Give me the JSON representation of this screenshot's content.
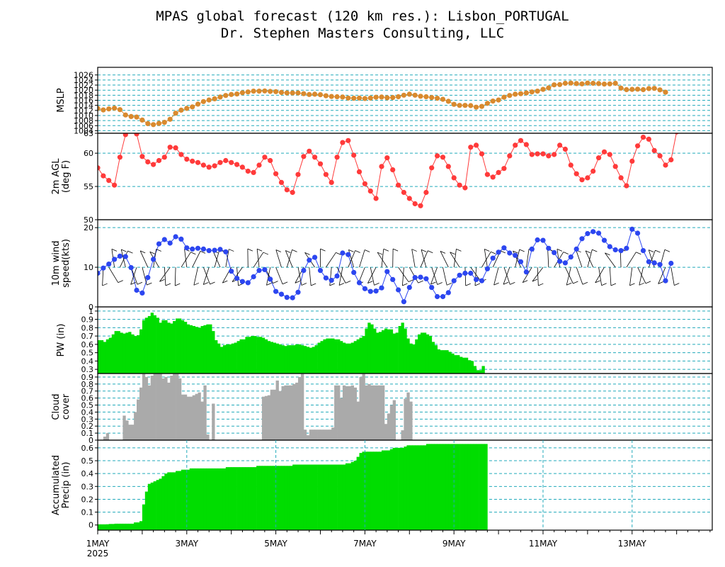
{
  "header": {
    "title": "MPAS global forecast (120 km res.): Lisbon_PORTUGAL",
    "subtitle": "Dr. Stephen Masters Consulting, LLC"
  },
  "colors": {
    "mslp": "#d98a2e",
    "temp": "#ff3a3a",
    "wind": "#2c46f0",
    "pw_fill": "#00dd00",
    "cloud_fill": "#aaaaaa",
    "precip_fill": "#00dd00",
    "grid": "#22aabb"
  },
  "chart_data": [
    {
      "type": "line",
      "name": "mslp",
      "ylabel": "MSLP",
      "ylim": [
        1003,
        1029
      ],
      "yticks": [
        1004,
        1006,
        1008,
        1010,
        1012,
        1014,
        1016,
        1018,
        1020,
        1022,
        1024,
        1026
      ],
      "ytick_labels": [
        "1004",
        "1006",
        "1008",
        "1010",
        "1012",
        "1014",
        "1016",
        "1018",
        "1020",
        "1022",
        "1024",
        "1026"
      ],
      "gridlines": [
        1004,
        1006,
        1008,
        1010,
        1012,
        1014,
        1016,
        1018,
        1020,
        1022,
        1024,
        1026
      ],
      "x_start_day": 0,
      "x_step_days": 0.125,
      "values": [
        1012.8,
        1012.2,
        1012.6,
        1012.9,
        1012.3,
        1010.2,
        1009.6,
        1009.4,
        1008.2,
        1006.8,
        1006.4,
        1006.9,
        1007.3,
        1008.5,
        1010.9,
        1012.1,
        1012.8,
        1013.4,
        1014.5,
        1015.5,
        1016.1,
        1016.6,
        1017.3,
        1017.9,
        1018.3,
        1018.5,
        1019.0,
        1019.3,
        1019.6,
        1019.6,
        1019.7,
        1019.5,
        1019.4,
        1019.1,
        1018.9,
        1018.9,
        1018.9,
        1018.6,
        1018.3,
        1018.4,
        1018.2,
        1017.8,
        1017.5,
        1017.4,
        1017.3,
        1016.9,
        1016.8,
        1016.9,
        1016.7,
        1016.9,
        1017.2,
        1017.3,
        1017.0,
        1017.1,
        1017.4,
        1018.0,
        1018.4,
        1018.0,
        1017.6,
        1017.4,
        1017.1,
        1016.8,
        1016.4,
        1015.6,
        1014.4,
        1014.0,
        1014.0,
        1013.9,
        1013.3,
        1013.6,
        1014.8,
        1015.7,
        1016.1,
        1017.2,
        1017.9,
        1018.4,
        1018.6,
        1018.9,
        1019.3,
        1019.6,
        1020.3,
        1020.9,
        1022.1,
        1022.2,
        1022.7,
        1022.8,
        1022.6,
        1022.5,
        1022.8,
        1022.7,
        1022.6,
        1022.4,
        1022.5,
        1022.7,
        1020.8,
        1020.2,
        1020.3,
        1020.4,
        1020.2,
        1020.6,
        1020.7,
        1020.1,
        1019.2
      ]
    },
    {
      "type": "line",
      "name": "temp",
      "ylabel": "2m AGL (deg F)",
      "ylim": [
        50,
        63
      ],
      "yticks": [
        50,
        55,
        60,
        63
      ],
      "ytick_labels": [
        "50",
        "55",
        "60",
        "63"
      ],
      "gridlines": [
        55,
        60
      ],
      "x_start_day": 0,
      "x_step_days": 0.125,
      "values": [
        57.8,
        56.6,
        55.9,
        55.2,
        59.4,
        62.8,
        63.4,
        62.9,
        59.5,
        58.7,
        58.3,
        58.9,
        59.4,
        60.9,
        60.8,
        59.8,
        59.1,
        58.8,
        58.6,
        58.2,
        57.9,
        58.1,
        58.6,
        58.9,
        58.6,
        58.3,
        57.9,
        57.3,
        57.1,
        58.2,
        59.4,
        58.9,
        56.9,
        55.6,
        54.5,
        54.1,
        56.8,
        59.5,
        60.3,
        59.4,
        58.4,
        56.8,
        55.6,
        59.4,
        61.6,
        61.9,
        59.7,
        57.2,
        55.4,
        54.3,
        53.2,
        58.0,
        59.3,
        57.5,
        55.2,
        54.1,
        53.2,
        52.4,
        52.1,
        54.1,
        57.8,
        59.6,
        59.4,
        58.0,
        56.3,
        55.2,
        54.8,
        60.9,
        61.2,
        59.9,
        56.8,
        56.4,
        57.1,
        57.7,
        59.6,
        61.2,
        61.9,
        61.3,
        59.8,
        59.9,
        59.9,
        59.6,
        59.8,
        61.2,
        60.6,
        58.2,
        56.9,
        56.0,
        56.3,
        57.3,
        59.3,
        60.2,
        59.8,
        58.0,
        56.3,
        55.1,
        58.8,
        61.1,
        62.4,
        62.1,
        60.4,
        59.6,
        58.2,
        59.0,
        63.2
      ]
    },
    {
      "type": "line",
      "name": "wind",
      "ylabel": "10m wind speed(kts)",
      "ylim": [
        0,
        22
      ],
      "yticks": [
        0,
        10,
        20
      ],
      "ytick_labels": [
        "0",
        "10",
        "20"
      ],
      "gridlines": [
        10,
        20
      ],
      "x_start_day": 0,
      "x_step_days": 0.125,
      "values": [
        8.5,
        9.8,
        10.8,
        12.0,
        12.8,
        12.7,
        9.9,
        4.2,
        3.5,
        7.4,
        12.0,
        15.9,
        17.0,
        16.1,
        17.7,
        17.1,
        14.9,
        14.6,
        14.8,
        14.6,
        14.2,
        14.3,
        14.5,
        13.9,
        9.0,
        7.2,
        6.4,
        6.1,
        7.6,
        9.2,
        9.4,
        7.0,
        3.9,
        3.2,
        2.4,
        2.3,
        3.7,
        9.2,
        11.8,
        12.5,
        9.2,
        7.3,
        6.7,
        7.8,
        13.6,
        13.2,
        8.7,
        6.1,
        4.6,
        3.9,
        4.0,
        4.8,
        8.9,
        6.9,
        4.3,
        1.3,
        4.9,
        7.4,
        7.5,
        7.1,
        4.9,
        2.6,
        2.6,
        3.6,
        6.6,
        8.0,
        8.5,
        8.5,
        6.9,
        6.6,
        9.6,
        12.3,
        13.8,
        14.9,
        13.6,
        13.0,
        11.4,
        8.8,
        14.6,
        16.9,
        16.8,
        14.8,
        13.7,
        11.5,
        11.1,
        12.6,
        14.6,
        17.2,
        18.5,
        19.0,
        18.6,
        16.8,
        15.2,
        14.4,
        14.2,
        14.8,
        19.6,
        18.6,
        14.2,
        11.4,
        11.1,
        10.7,
        6.6,
        11.0
      ]
    },
    {
      "type": "area",
      "name": "pw",
      "ylabel": "PW (in)",
      "ylim": [
        0.25,
        1.05
      ],
      "yticks": [
        0.3,
        0.4,
        0.5,
        0.6,
        0.7,
        0.8,
        0.9,
        1.0
      ],
      "ytick_labels": [
        "0.3",
        "0.4",
        "0.5",
        "0.6",
        "0.7",
        "0.8",
        "0.9",
        "1"
      ],
      "gridlines": [
        0.3,
        0.4,
        0.5,
        0.6,
        0.7,
        0.8,
        0.9,
        1.0
      ],
      "x_start_day": 0,
      "x_step_days": 0.0625,
      "values": [
        0.65,
        0.65,
        0.63,
        0.66,
        0.68,
        0.72,
        0.76,
        0.76,
        0.74,
        0.73,
        0.74,
        0.75,
        0.72,
        0.7,
        0.71,
        0.78,
        0.89,
        0.92,
        0.94,
        0.98,
        0.95,
        0.92,
        0.86,
        0.89,
        0.89,
        0.86,
        0.85,
        0.88,
        0.91,
        0.91,
        0.89,
        0.87,
        0.84,
        0.83,
        0.82,
        0.81,
        0.8,
        0.82,
        0.83,
        0.84,
        0.84,
        0.76,
        0.65,
        0.61,
        0.57,
        0.59,
        0.6,
        0.6,
        0.61,
        0.62,
        0.64,
        0.66,
        0.66,
        0.69,
        0.69,
        0.7,
        0.7,
        0.69,
        0.69,
        0.68,
        0.66,
        0.64,
        0.63,
        0.62,
        0.61,
        0.6,
        0.59,
        0.58,
        0.59,
        0.59,
        0.59,
        0.6,
        0.6,
        0.59,
        0.58,
        0.57,
        0.56,
        0.57,
        0.59,
        0.62,
        0.64,
        0.66,
        0.67,
        0.67,
        0.67,
        0.66,
        0.66,
        0.64,
        0.62,
        0.61,
        0.61,
        0.62,
        0.64,
        0.66,
        0.68,
        0.7,
        0.79,
        0.86,
        0.84,
        0.79,
        0.74,
        0.75,
        0.77,
        0.79,
        0.78,
        0.78,
        0.73,
        0.74,
        0.82,
        0.86,
        0.79,
        0.67,
        0.61,
        0.6,
        0.66,
        0.72,
        0.74,
        0.74,
        0.72,
        0.7,
        0.63,
        0.59,
        0.54,
        0.53,
        0.53,
        0.53,
        0.51,
        0.49,
        0.47,
        0.47,
        0.45,
        0.44,
        0.44,
        0.41,
        0.4,
        0.34,
        0.29,
        0.29,
        0.34
      ]
    },
    {
      "type": "bar",
      "name": "cloud",
      "ylabel": "Cloud cover",
      "ylim": [
        0,
        0.95
      ],
      "yticks": [
        0,
        0.1,
        0.2,
        0.3,
        0.4,
        0.5,
        0.6,
        0.7,
        0.8,
        0.9
      ],
      "ytick_labels": [
        "0",
        "0.1",
        "0.2",
        "0.3",
        "0.4",
        "0.5",
        "0.6",
        "0.7",
        "0.8",
        "0.9"
      ],
      "gridlines": [
        0.1,
        0.2,
        0.3,
        0.4,
        0.5,
        0.6,
        0.7,
        0.8,
        0.9
      ],
      "x_start_day": 0,
      "x_step_days": 0.0625,
      "values": [
        0,
        0,
        0.05,
        0.1,
        0,
        0,
        0,
        0,
        0,
        0.35,
        0.28,
        0.22,
        0.22,
        0.4,
        0.58,
        0.75,
        0.97,
        0.9,
        0.78,
        0.92,
        0.98,
        0.98,
        0.98,
        0.88,
        0.9,
        0.82,
        0.92,
        0.98,
        0.98,
        0.88,
        0.65,
        0.65,
        0.62,
        0.62,
        0.64,
        0.66,
        0.68,
        0.55,
        0.78,
        0.08,
        0,
        0.52,
        0,
        0,
        0,
        0,
        0,
        0,
        0,
        0,
        0,
        0,
        0,
        0,
        0,
        0,
        0,
        0,
        0,
        0.62,
        0.63,
        0.64,
        0.72,
        0.72,
        0.85,
        0.7,
        0.77,
        0.78,
        0.78,
        0.78,
        0.8,
        0.82,
        0.9,
        0.98,
        0.15,
        0.07,
        0.15,
        0.15,
        0.15,
        0.15,
        0.15,
        0.15,
        0.15,
        0.15,
        0.18,
        0.78,
        0.78,
        0.6,
        0.78,
        0.77,
        0.77,
        0.78,
        0.75,
        0.55,
        0.9,
        0.99,
        0.78,
        0.8,
        0.78,
        0.78,
        0.78,
        0.78,
        0.78,
        0.23,
        0.38,
        0.5,
        0.57,
        0,
        0,
        0.14,
        0.59,
        0.68,
        0.55,
        0,
        0,
        0,
        0,
        0,
        0,
        0,
        0,
        0,
        0,
        0,
        0,
        0,
        0,
        0,
        0,
        0,
        0,
        0,
        0,
        0,
        0,
        0,
        0,
        0,
        0
      ]
    },
    {
      "type": "area",
      "name": "precip",
      "ylabel": "Accumulated Precip (in)",
      "ylim": [
        -0.04,
        0.66
      ],
      "yticks": [
        0,
        0.1,
        0.2,
        0.3,
        0.4,
        0.5,
        0.6
      ],
      "ytick_labels": [
        "0",
        "0.1",
        "0.2",
        "0.3",
        "0.4",
        "0.5",
        "0.6"
      ],
      "gridlines": [
        0.1,
        0.2,
        0.3,
        0.4,
        0.5,
        0.6
      ],
      "x_start_day": 0,
      "x_step_days": 0.0625,
      "values": [
        0.005,
        0.005,
        0.005,
        0.006,
        0.008,
        0.008,
        0.01,
        0.01,
        0.01,
        0.01,
        0.01,
        0.01,
        0.01,
        0.02,
        0.02,
        0.03,
        0.16,
        0.26,
        0.32,
        0.33,
        0.34,
        0.35,
        0.36,
        0.38,
        0.4,
        0.41,
        0.41,
        0.41,
        0.42,
        0.42,
        0.43,
        0.43,
        0.43,
        0.44,
        0.44,
        0.44,
        0.44,
        0.44,
        0.44,
        0.44,
        0.44,
        0.44,
        0.44,
        0.44,
        0.44,
        0.44,
        0.45,
        0.45,
        0.45,
        0.45,
        0.45,
        0.45,
        0.45,
        0.45,
        0.45,
        0.45,
        0.45,
        0.46,
        0.46,
        0.46,
        0.46,
        0.46,
        0.46,
        0.46,
        0.46,
        0.46,
        0.46,
        0.46,
        0.46,
        0.46,
        0.47,
        0.47,
        0.47,
        0.47,
        0.47,
        0.47,
        0.47,
        0.47,
        0.47,
        0.47,
        0.47,
        0.47,
        0.47,
        0.47,
        0.47,
        0.47,
        0.47,
        0.47,
        0.47,
        0.48,
        0.48,
        0.49,
        0.5,
        0.53,
        0.56,
        0.57,
        0.57,
        0.57,
        0.57,
        0.57,
        0.57,
        0.57,
        0.58,
        0.58,
        0.58,
        0.59,
        0.6,
        0.6,
        0.6,
        0.6,
        0.61,
        0.62,
        0.62,
        0.62,
        0.62,
        0.62,
        0.62,
        0.62,
        0.63,
        0.63,
        0.63,
        0.63,
        0.63,
        0.63,
        0.63,
        0.63,
        0.63,
        0.63,
        0.63,
        0.63,
        0.63,
        0.63,
        0.63,
        0.63,
        0.63,
        0.63,
        0.63,
        0.63,
        0.63,
        0.63
      ]
    }
  ],
  "x_axis": {
    "day_range": [
      0,
      13.8
    ],
    "ticks": [
      {
        "day": 0,
        "label": "1MAY",
        "sublabel": "2025"
      },
      {
        "day": 2,
        "label": "3MAY"
      },
      {
        "day": 4,
        "label": "5MAY"
      },
      {
        "day": 6,
        "label": "7MAY"
      },
      {
        "day": 8,
        "label": "9MAY"
      },
      {
        "day": 10,
        "label": "11MAY"
      },
      {
        "day": 12,
        "label": "13MAY"
      }
    ],
    "minor_step_days": 0.25
  }
}
